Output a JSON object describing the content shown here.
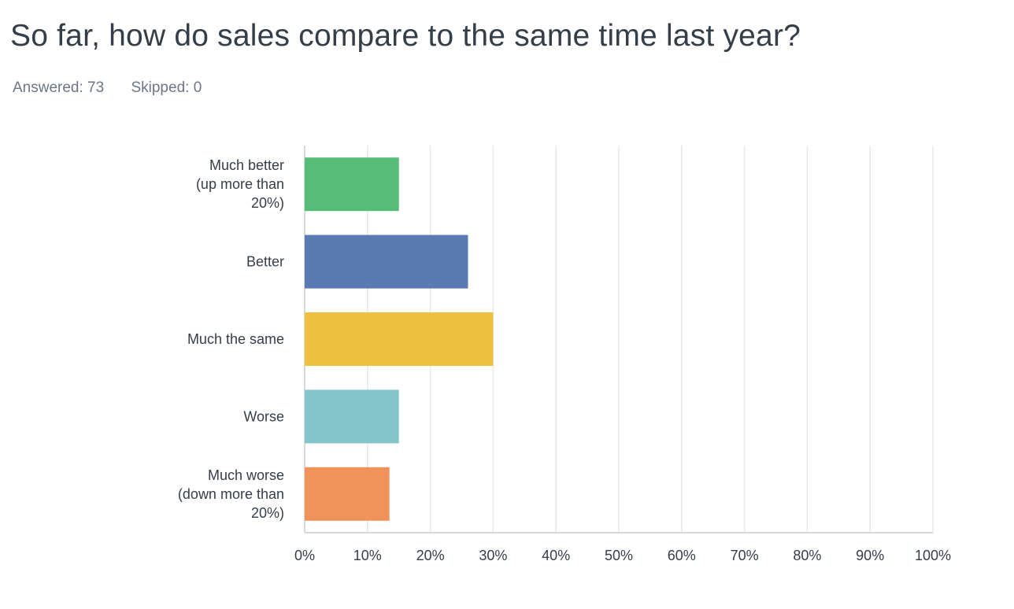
{
  "question": {
    "title": "So far, how do sales compare to the same time last year?",
    "answered_label": "Answered: 73",
    "skipped_label": "Skipped: 0"
  },
  "chart_data": {
    "type": "bar",
    "orientation": "horizontal",
    "categories": [
      [
        "Much better",
        "(up more than",
        "20%)"
      ],
      [
        "Better"
      ],
      [
        "Much the same"
      ],
      [
        "Worse"
      ],
      [
        "Much worse",
        "(down more than",
        "20%)"
      ]
    ],
    "values": [
      15,
      26,
      30,
      15,
      13.5
    ],
    "bar_colors": [
      "#57bc76",
      "#5a7ab2",
      "#efc040",
      "#82c5ca",
      "#f0935a"
    ],
    "xlim": [
      0,
      100
    ],
    "xticks": [
      "0%",
      "10%",
      "20%",
      "30%",
      "40%",
      "50%",
      "60%",
      "70%",
      "80%",
      "90%",
      "100%"
    ],
    "grid": true,
    "legend": false
  }
}
